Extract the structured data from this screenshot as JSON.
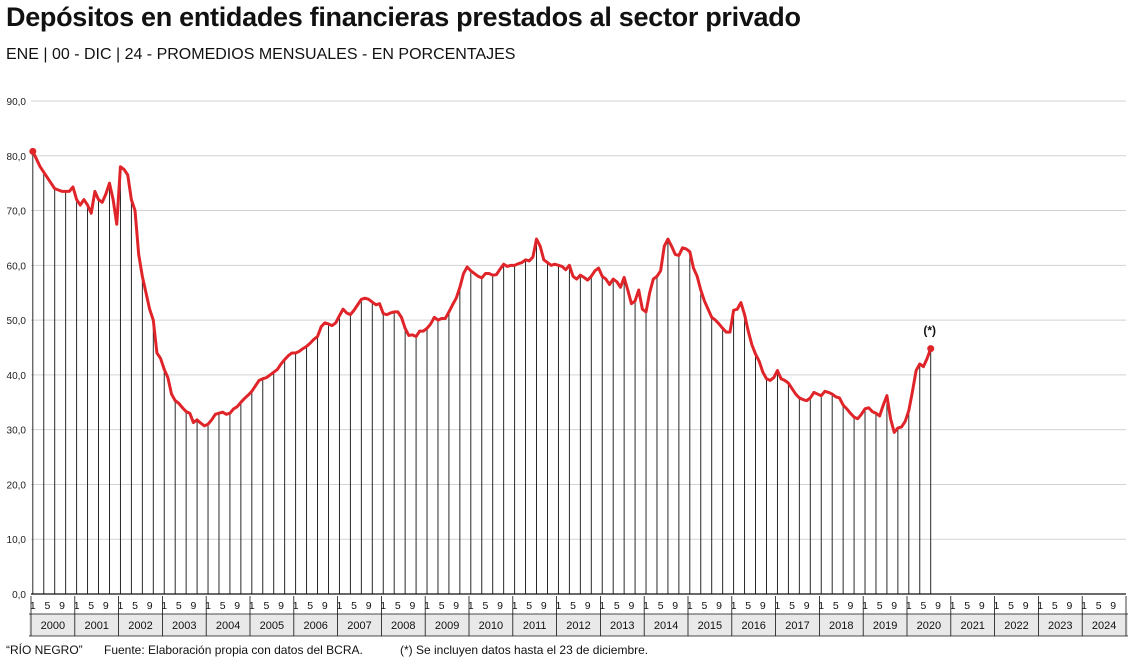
{
  "header": {
    "title": "Depósitos en entidades financieras prestados al sector privado",
    "subtitle": "ENE | 00 - DIC | 24 - PROMEDIOS MENSUALES - EN PORCENTAJES"
  },
  "footer": {
    "brand": "“RÍO NEGRO”",
    "source": "Fuente: Elaboración propia con datos del BCRA.",
    "note": "(*) Se incluyen datos hasta el 23 de diciembre."
  },
  "chart_data": {
    "type": "line",
    "color": "#e0252a",
    "ylim": [
      0,
      90
    ],
    "yticks": [
      "0,0",
      "10,0",
      "20,0",
      "30,0",
      "40,0",
      "50,0",
      "60,0",
      "70,0",
      "80,0",
      "90,0"
    ],
    "grid": true,
    "month_ticks": [
      "1",
      "5",
      "9"
    ],
    "annotation": "(*)",
    "years": [
      "2000",
      "2001",
      "2002",
      "2003",
      "2004",
      "2005",
      "2006",
      "2007",
      "2008",
      "2009",
      "2010",
      "2011",
      "2012",
      "2013",
      "2014",
      "2015",
      "2016",
      "2017",
      "2018",
      "2019",
      "2020",
      "2021",
      "2022",
      "2023",
      "2024"
    ],
    "keypoints": [
      [
        0,
        80.8
      ],
      [
        2,
        78
      ],
      [
        4,
        76
      ],
      [
        6,
        74
      ],
      [
        8,
        73.5
      ],
      [
        10,
        73.5
      ],
      [
        11,
        74.3
      ],
      [
        12,
        72
      ],
      [
        13,
        71
      ],
      [
        14,
        72
      ],
      [
        15,
        71
      ],
      [
        16,
        69.5
      ],
      [
        17,
        73.5
      ],
      [
        18,
        72
      ],
      [
        19,
        71.5
      ],
      [
        20,
        73
      ],
      [
        21,
        75
      ],
      [
        22,
        72
      ],
      [
        23,
        67.5
      ],
      [
        24,
        78
      ],
      [
        25,
        77.5
      ],
      [
        26,
        76.5
      ],
      [
        27,
        72
      ],
      [
        28,
        70
      ],
      [
        29,
        62
      ],
      [
        30,
        58
      ],
      [
        31,
        55
      ],
      [
        32,
        52
      ],
      [
        33,
        50
      ],
      [
        34,
        44
      ],
      [
        35,
        43
      ],
      [
        36,
        41
      ],
      [
        37,
        39.5
      ],
      [
        38,
        36.5
      ],
      [
        39,
        35.3
      ],
      [
        40,
        34.8
      ],
      [
        41,
        34
      ],
      [
        42,
        33.3
      ],
      [
        43,
        33
      ],
      [
        44,
        31.3
      ],
      [
        45,
        31.8
      ],
      [
        46,
        31.2
      ],
      [
        47,
        30.7
      ],
      [
        48,
        31
      ],
      [
        49,
        31.8
      ],
      [
        50,
        32.8
      ],
      [
        51,
        33
      ],
      [
        52,
        33.2
      ],
      [
        53,
        32.8
      ],
      [
        54,
        33
      ],
      [
        55,
        33.8
      ],
      [
        56,
        34.2
      ],
      [
        57,
        35
      ],
      [
        58,
        35.7
      ],
      [
        59,
        36.3
      ],
      [
        60,
        37
      ],
      [
        61,
        38
      ],
      [
        62,
        39
      ],
      [
        63,
        39.3
      ],
      [
        64,
        39.5
      ],
      [
        65,
        40
      ],
      [
        66,
        40.5
      ],
      [
        67,
        41
      ],
      [
        68,
        42
      ],
      [
        69,
        42.8
      ],
      [
        70,
        43.5
      ],
      [
        71,
        44
      ],
      [
        72,
        44
      ],
      [
        73,
        44.3
      ],
      [
        74,
        44.8
      ],
      [
        75,
        45.2
      ],
      [
        76,
        45.8
      ],
      [
        77,
        46.5
      ],
      [
        78,
        47
      ],
      [
        79,
        48.8
      ],
      [
        80,
        49.5
      ],
      [
        81,
        49.3
      ],
      [
        82,
        49
      ],
      [
        83,
        49.5
      ],
      [
        84,
        50.8
      ],
      [
        85,
        52
      ],
      [
        86,
        51.3
      ],
      [
        87,
        51
      ],
      [
        88,
        51.8
      ],
      [
        89,
        52.8
      ],
      [
        90,
        53.8
      ],
      [
        91,
        54
      ],
      [
        92,
        53.8
      ],
      [
        93,
        53.3
      ],
      [
        94,
        52.8
      ],
      [
        95,
        53
      ],
      [
        96,
        51.2
      ],
      [
        97,
        51
      ],
      [
        98,
        51.3
      ],
      [
        99,
        51.5
      ],
      [
        100,
        51.5
      ],
      [
        101,
        50.5
      ],
      [
        102,
        48.5
      ],
      [
        103,
        47.2
      ],
      [
        104,
        47.3
      ],
      [
        105,
        47
      ],
      [
        106,
        48
      ],
      [
        107,
        48
      ],
      [
        108,
        48.5
      ],
      [
        109,
        49.3
      ],
      [
        110,
        50.5
      ],
      [
        111,
        50
      ],
      [
        112,
        50.3
      ],
      [
        113,
        50.3
      ],
      [
        114,
        51.5
      ],
      [
        115,
        52.8
      ],
      [
        116,
        54
      ],
      [
        117,
        56
      ],
      [
        118,
        58.5
      ],
      [
        119,
        59.7
      ],
      [
        120,
        59
      ],
      [
        121,
        58.5
      ],
      [
        122,
        58
      ],
      [
        123,
        57.7
      ],
      [
        124,
        58.5
      ],
      [
        125,
        58.5
      ],
      [
        126,
        58.2
      ],
      [
        127,
        58.3
      ],
      [
        128,
        59.3
      ],
      [
        129,
        60.2
      ],
      [
        130,
        59.8
      ],
      [
        131,
        60
      ],
      [
        132,
        60
      ],
      [
        133,
        60.3
      ],
      [
        134,
        60.5
      ],
      [
        135,
        61
      ],
      [
        136,
        60.8
      ],
      [
        137,
        61.5
      ],
      [
        138,
        64.8
      ],
      [
        139,
        63.5
      ],
      [
        140,
        61
      ],
      [
        141,
        60.5
      ],
      [
        142,
        60
      ],
      [
        143,
        60.2
      ],
      [
        144,
        60
      ],
      [
        145,
        59.8
      ],
      [
        146,
        59.2
      ],
      [
        147,
        60
      ],
      [
        148,
        58
      ],
      [
        149,
        57.5
      ],
      [
        150,
        58.2
      ],
      [
        151,
        57.8
      ],
      [
        152,
        57.3
      ],
      [
        153,
        58
      ],
      [
        154,
        59
      ],
      [
        155,
        59.5
      ],
      [
        156,
        58
      ],
      [
        157,
        57.5
      ],
      [
        158,
        56.5
      ],
      [
        159,
        57.5
      ],
      [
        160,
        57
      ],
      [
        161,
        56
      ],
      [
        162,
        57.8
      ],
      [
        163,
        55.5
      ],
      [
        164,
        53
      ],
      [
        165,
        53.5
      ],
      [
        166,
        55.5
      ],
      [
        167,
        52
      ],
      [
        168,
        51.5
      ],
      [
        169,
        55
      ],
      [
        170,
        57.5
      ],
      [
        171,
        58
      ],
      [
        172,
        59
      ],
      [
        173,
        63.5
      ],
      [
        174,
        64.8
      ],
      [
        175,
        63.5
      ],
      [
        176,
        62
      ],
      [
        177,
        61.8
      ],
      [
        178,
        63.2
      ],
      [
        179,
        63
      ],
      [
        180,
        62.5
      ],
      [
        181,
        59.5
      ],
      [
        182,
        58
      ],
      [
        183,
        55.5
      ],
      [
        184,
        53.5
      ],
      [
        185,
        52
      ],
      [
        186,
        50.5
      ],
      [
        187,
        50
      ],
      [
        188,
        49.3
      ],
      [
        189,
        48.5
      ],
      [
        190,
        47.8
      ],
      [
        191,
        47.8
      ],
      [
        192,
        51.8
      ],
      [
        193,
        52
      ],
      [
        194,
        53.2
      ],
      [
        195,
        51
      ],
      [
        196,
        48
      ],
      [
        197,
        45.5
      ],
      [
        198,
        43.8
      ],
      [
        199,
        42.5
      ],
      [
        200,
        40.5
      ],
      [
        201,
        39.3
      ],
      [
        202,
        39
      ],
      [
        203,
        39.5
      ],
      [
        204,
        40.8
      ],
      [
        205,
        39.3
      ],
      [
        206,
        39
      ],
      [
        207,
        38.5
      ],
      [
        208,
        37.5
      ],
      [
        209,
        36.5
      ],
      [
        210,
        35.8
      ],
      [
        211,
        35.5
      ],
      [
        212,
        35.3
      ],
      [
        213,
        35.8
      ],
      [
        214,
        36.8
      ],
      [
        215,
        36.5
      ],
      [
        216,
        36.2
      ],
      [
        217,
        37
      ],
      [
        218,
        36.8
      ],
      [
        219,
        36.5
      ],
      [
        220,
        36
      ],
      [
        221,
        35.8
      ],
      [
        222,
        34.5
      ],
      [
        223,
        33.8
      ],
      [
        224,
        33
      ],
      [
        225,
        32.3
      ],
      [
        226,
        32
      ],
      [
        227,
        32.8
      ],
      [
        228,
        33.8
      ],
      [
        229,
        34
      ],
      [
        230,
        33.3
      ],
      [
        231,
        33
      ],
      [
        232,
        32.5
      ],
      [
        233,
        34.5
      ],
      [
        234,
        36.2
      ],
      [
        235,
        32
      ],
      [
        236,
        29.5
      ],
      [
        237,
        30.3
      ],
      [
        238,
        30.5
      ],
      [
        239,
        31.5
      ],
      [
        240,
        33.5
      ],
      [
        241,
        37
      ],
      [
        242,
        40.8
      ],
      [
        243,
        42
      ],
      [
        244,
        41.5
      ],
      [
        245,
        43
      ],
      [
        246,
        44.8
      ]
    ]
  }
}
